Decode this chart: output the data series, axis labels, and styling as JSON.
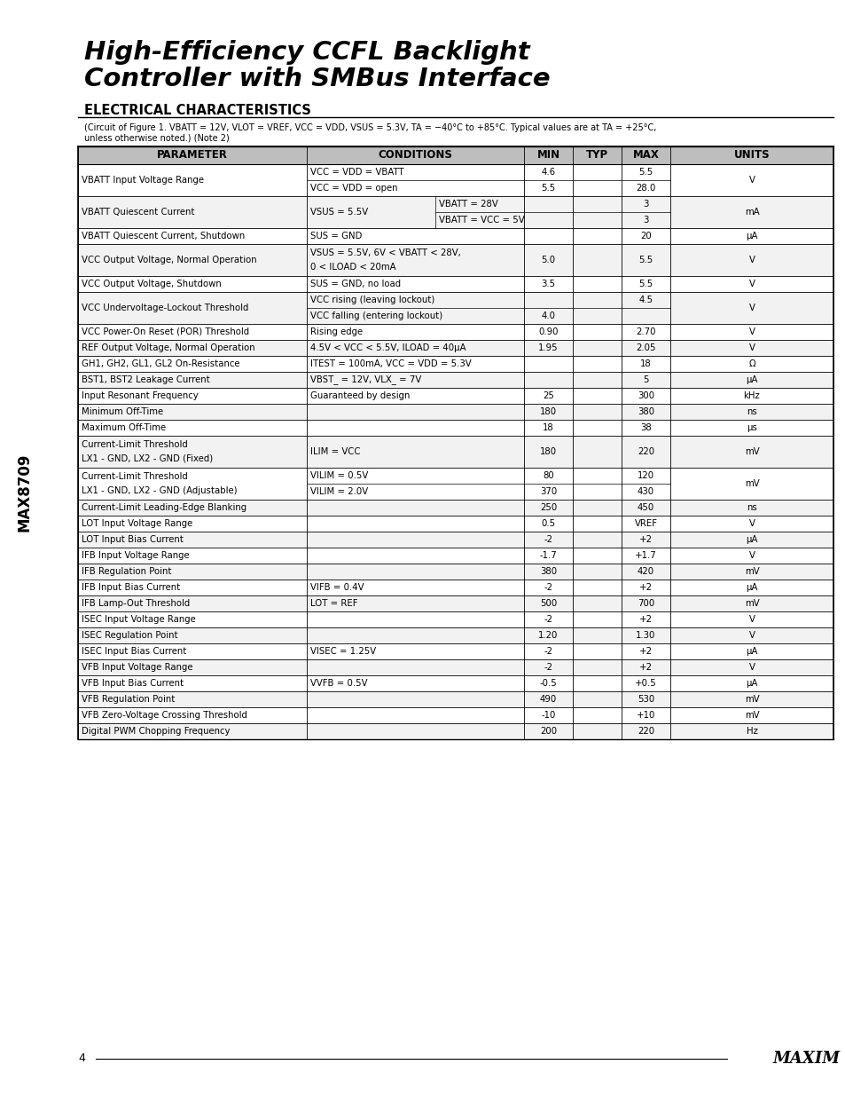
{
  "title_line1": "High-Efficiency CCFL Backlight",
  "title_line2": "Controller with SMBus Interface",
  "section_title": "ELECTRICAL CHARACTERISTICS",
  "subtitle_line1": "(Circuit of Figure 1. VBATT = 12V, VLOT = VREF, VCC = VDD, VSUS = 5.3V, TA = −40°C to +85°C. Typical values are at TA = +25°C,",
  "subtitle_line2": "unless otherwise noted.) (Note 2)",
  "side_text": "MAX8709",
  "page_number": "4",
  "table_rows": [
    {
      "type": "double",
      "param": "VBATT Input Voltage Range",
      "row1": {
        "cond": "VCC = VDD = VBATT",
        "min": "4.6",
        "typ": "",
        "max": "5.5"
      },
      "row2": {
        "cond": "VCC = VDD = open",
        "min": "5.5",
        "typ": "",
        "max": "28.0"
      },
      "units": "V"
    },
    {
      "type": "split",
      "param": "VBATT Quiescent Current",
      "cond_left": "VSUS = 5.5V",
      "row1": {
        "cond": "VBATT = 28V",
        "min": "",
        "typ": "",
        "max": "3"
      },
      "row2": {
        "cond": "VBATT = VCC = 5V",
        "min": "",
        "typ": "",
        "max": "3"
      },
      "units": "mA"
    },
    {
      "type": "single",
      "param": "VBATT Quiescent Current, Shutdown",
      "cond": "SUS = GND",
      "min": "",
      "typ": "",
      "max": "20",
      "units": "μA"
    },
    {
      "type": "single2",
      "param": "VCC Output Voltage, Normal Operation",
      "cond1": "VSUS = 5.5V, 6V < VBATT < 28V,",
      "cond2": "0 < ILOAD < 20mA",
      "min": "5.0",
      "typ": "",
      "max": "5.5",
      "units": "V"
    },
    {
      "type": "single",
      "param": "VCC Output Voltage, Shutdown",
      "cond": "SUS = GND, no load",
      "min": "3.5",
      "typ": "",
      "max": "5.5",
      "units": "V"
    },
    {
      "type": "double",
      "param": "VCC Undervoltage-Lockout Threshold",
      "row1": {
        "cond": "VCC rising (leaving lockout)",
        "min": "",
        "typ": "",
        "max": "4.5"
      },
      "row2": {
        "cond": "VCC falling (entering lockout)",
        "min": "4.0",
        "typ": "",
        "max": ""
      },
      "units": "V"
    },
    {
      "type": "single",
      "param": "VCC Power-On Reset (POR) Threshold",
      "cond": "Rising edge",
      "min": "0.90",
      "typ": "",
      "max": "2.70",
      "units": "V"
    },
    {
      "type": "single",
      "param": "REF Output Voltage, Normal Operation",
      "cond": "4.5V < VCC < 5.5V, ILOAD = 40μA",
      "min": "1.95",
      "typ": "",
      "max": "2.05",
      "units": "V"
    },
    {
      "type": "single",
      "param": "GH1, GH2, GL1, GL2 On-Resistance",
      "cond": "ITEST = 100mA, VCC = VDD = 5.3V",
      "min": "",
      "typ": "",
      "max": "18",
      "units": "Ω"
    },
    {
      "type": "single",
      "param": "BST1, BST2 Leakage Current",
      "cond": "VBST_ = 12V, VLX_ = 7V",
      "min": "",
      "typ": "",
      "max": "5",
      "units": "μA"
    },
    {
      "type": "single",
      "param": "Input Resonant Frequency",
      "cond": "Guaranteed by design",
      "min": "25",
      "typ": "",
      "max": "300",
      "units": "kHz"
    },
    {
      "type": "single",
      "param": "Minimum Off-Time",
      "cond": "",
      "min": "180",
      "typ": "",
      "max": "380",
      "units": "ns"
    },
    {
      "type": "single",
      "param": "Maximum Off-Time",
      "cond": "",
      "min": "18",
      "typ": "",
      "max": "38",
      "units": "μs"
    },
    {
      "type": "single2",
      "param": "Current-Limit Threshold\nLX1 - GND, LX2 - GND (Fixed)",
      "cond1": "ILIM = VCC",
      "cond2": "",
      "min": "180",
      "typ": "",
      "max": "220",
      "units": "mV"
    },
    {
      "type": "double2",
      "param": "Current-Limit Threshold\nLX1 - GND, LX2 - GND (Adjustable)",
      "row1": {
        "cond": "VILIM = 0.5V",
        "min": "80",
        "typ": "",
        "max": "120"
      },
      "row2": {
        "cond": "VILIM = 2.0V",
        "min": "370",
        "typ": "",
        "max": "430"
      },
      "units": "mV"
    },
    {
      "type": "single",
      "param": "Current-Limit Leading-Edge Blanking",
      "cond": "",
      "min": "250",
      "typ": "",
      "max": "450",
      "units": "ns"
    },
    {
      "type": "single",
      "param": "LOT Input Voltage Range",
      "cond": "",
      "min": "0.5",
      "typ": "",
      "max": "VREF",
      "units": "V"
    },
    {
      "type": "single",
      "param": "LOT Input Bias Current",
      "cond": "",
      "min": "-2",
      "typ": "",
      "max": "+2",
      "units": "μA"
    },
    {
      "type": "single",
      "param": "IFB Input Voltage Range",
      "cond": "",
      "min": "-1.7",
      "typ": "",
      "max": "+1.7",
      "units": "V"
    },
    {
      "type": "single",
      "param": "IFB Regulation Point",
      "cond": "",
      "min": "380",
      "typ": "",
      "max": "420",
      "units": "mV"
    },
    {
      "type": "single",
      "param": "IFB Input Bias Current",
      "cond": "VIFB = 0.4V",
      "min": "-2",
      "typ": "",
      "max": "+2",
      "units": "μA"
    },
    {
      "type": "single",
      "param": "IFB Lamp-Out Threshold",
      "cond": "LOT = REF",
      "min": "500",
      "typ": "",
      "max": "700",
      "units": "mV"
    },
    {
      "type": "single",
      "param": "ISEC Input Voltage Range",
      "cond": "",
      "min": "-2",
      "typ": "",
      "max": "+2",
      "units": "V"
    },
    {
      "type": "single",
      "param": "ISEC Regulation Point",
      "cond": "",
      "min": "1.20",
      "typ": "",
      "max": "1.30",
      "units": "V"
    },
    {
      "type": "single",
      "param": "ISEC Input Bias Current",
      "cond": "VISEC = 1.25V",
      "min": "-2",
      "typ": "",
      "max": "+2",
      "units": "μA"
    },
    {
      "type": "single",
      "param": "VFB Input Voltage Range",
      "cond": "",
      "min": "-2",
      "typ": "",
      "max": "+2",
      "units": "V"
    },
    {
      "type": "single",
      "param": "VFB Input Bias Current",
      "cond": "VVFB = 0.5V",
      "min": "-0.5",
      "typ": "",
      "max": "+0.5",
      "units": "μA"
    },
    {
      "type": "single",
      "param": "VFB Regulation Point",
      "cond": "",
      "min": "490",
      "typ": "",
      "max": "530",
      "units": "mV"
    },
    {
      "type": "single",
      "param": "VFB Zero-Voltage Crossing Threshold",
      "cond": "",
      "min": "-10",
      "typ": "",
      "max": "+10",
      "units": "mV"
    },
    {
      "type": "single",
      "param": "Digital PWM Chopping Frequency",
      "cond": "",
      "min": "200",
      "typ": "",
      "max": "220",
      "units": "Hz"
    }
  ]
}
